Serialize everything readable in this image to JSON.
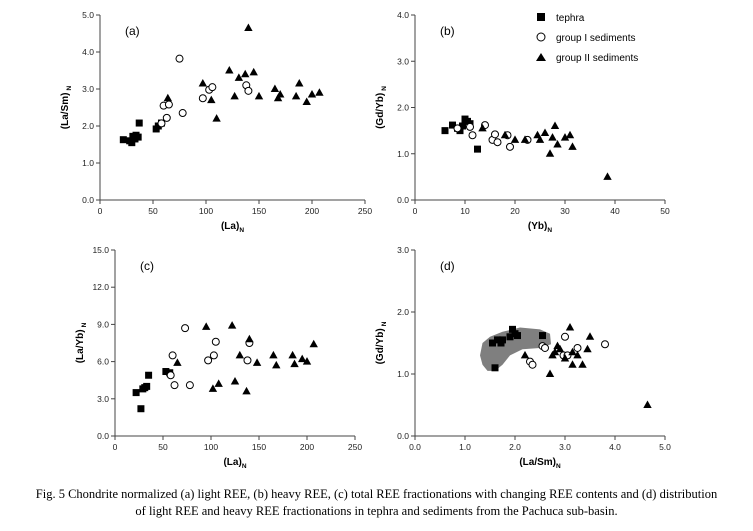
{
  "caption": {
    "line1": "Fig. 5 Chondrite normalized (a) light REE, (b) heavy REE, (c) total REE fractionations with changing REE contents and (d) distribution",
    "line2": "of light REE and heavy REE fractionations in tephra and sediments from the Pachuca sub-basin."
  },
  "legend": {
    "tephra": "tephra",
    "group1": "group I sediments",
    "group2": "group II sediments"
  },
  "chart_data": [
    {
      "id": "a",
      "panel_label": "(a)",
      "type": "scatter",
      "xlabel": "(La)N",
      "ylabel": "(La/Sm)N",
      "xlim": [
        0,
        250
      ],
      "ylim": [
        0,
        5
      ],
      "xticks": [
        "0",
        "50",
        "100",
        "150",
        "200",
        "250"
      ],
      "yticks": [
        "0.0",
        "1.0",
        "2.0",
        "3.0",
        "4.0",
        "5.0"
      ],
      "series": [
        {
          "name": "tephra",
          "marker": "square",
          "points": [
            [
              22,
              1.63
            ],
            [
              28,
              1.6
            ],
            [
              30,
              1.55
            ],
            [
              31,
              1.72
            ],
            [
              33,
              1.65
            ],
            [
              34,
              1.75
            ],
            [
              36,
              1.7
            ],
            [
              37,
              2.08
            ],
            [
              53,
              1.92
            ],
            [
              55,
              2.0
            ],
            [
              58,
              2.08
            ]
          ]
        },
        {
          "name": "group I sediments",
          "marker": "circle",
          "points": [
            [
              58,
              2.07
            ],
            [
              60,
              2.55
            ],
            [
              63,
              2.22
            ],
            [
              65,
              2.58
            ],
            [
              75,
              3.82
            ],
            [
              78,
              2.35
            ],
            [
              97,
              2.75
            ],
            [
              103,
              2.98
            ],
            [
              106,
              3.05
            ],
            [
              138,
              3.1
            ],
            [
              140,
              2.95
            ]
          ]
        },
        {
          "name": "group II sediments",
          "marker": "triangle",
          "points": [
            [
              64,
              2.75
            ],
            [
              97,
              3.15
            ],
            [
              105,
              2.7
            ],
            [
              110,
              2.2
            ],
            [
              122,
              3.5
            ],
            [
              127,
              2.8
            ],
            [
              131,
              3.3
            ],
            [
              137,
              3.4
            ],
            [
              140,
              4.65
            ],
            [
              145,
              3.45
            ],
            [
              150,
              2.8
            ],
            [
              165,
              3.0
            ],
            [
              168,
              2.75
            ],
            [
              170,
              2.85
            ],
            [
              185,
              2.8
            ],
            [
              188,
              3.15
            ],
            [
              195,
              2.65
            ],
            [
              200,
              2.85
            ],
            [
              207,
              2.9
            ]
          ]
        }
      ]
    },
    {
      "id": "b",
      "panel_label": "(b)",
      "type": "scatter",
      "xlabel": "(Yb)N",
      "ylabel": "(Gd/Yb) N",
      "xlim": [
        0,
        50
      ],
      "ylim": [
        0,
        4
      ],
      "xticks": [
        "0",
        "10",
        "20",
        "30",
        "40",
        "50"
      ],
      "yticks": [
        "0.0",
        "1.0",
        "2.0",
        "3.0",
        "4.0"
      ],
      "series": [
        {
          "name": "tephra",
          "marker": "square",
          "points": [
            [
              6,
              1.5
            ],
            [
              7.5,
              1.62
            ],
            [
              8.5,
              1.55
            ],
            [
              9,
              1.5
            ],
            [
              9.5,
              1.6
            ],
            [
              10,
              1.75
            ],
            [
              10.5,
              1.7
            ],
            [
              11,
              1.65
            ],
            [
              12.5,
              1.1
            ]
          ]
        },
        {
          "name": "group I sediments",
          "marker": "circle",
          "points": [
            [
              8.5,
              1.55
            ],
            [
              11,
              1.58
            ],
            [
              11.5,
              1.4
            ],
            [
              14,
              1.62
            ],
            [
              15.5,
              1.3
            ],
            [
              16,
              1.42
            ],
            [
              16.5,
              1.25
            ],
            [
              18.5,
              1.4
            ],
            [
              19,
              1.15
            ],
            [
              22.5,
              1.3
            ]
          ]
        },
        {
          "name": "group II sediments",
          "marker": "triangle",
          "points": [
            [
              13.5,
              1.55
            ],
            [
              18,
              1.4
            ],
            [
              20,
              1.3
            ],
            [
              22,
              1.3
            ],
            [
              24.5,
              1.4
            ],
            [
              25,
              1.3
            ],
            [
              26,
              1.45
            ],
            [
              27,
              1.0
            ],
            [
              27.5,
              1.35
            ],
            [
              28,
              1.6
            ],
            [
              28.5,
              1.2
            ],
            [
              30,
              1.35
            ],
            [
              31,
              1.4
            ],
            [
              31.5,
              1.15
            ],
            [
              38.5,
              0.5
            ]
          ]
        }
      ]
    },
    {
      "id": "c",
      "panel_label": "(c)",
      "type": "scatter",
      "xlabel": "(La)N",
      "ylabel": "(La/Yb) N",
      "xlim": [
        0,
        250
      ],
      "ylim": [
        0,
        15
      ],
      "xticks": [
        "0",
        "50",
        "100",
        "150",
        "200",
        "250"
      ],
      "yticks": [
        "0.0",
        "3.0",
        "6.0",
        "9.0",
        "12.0",
        "15.0"
      ],
      "series": [
        {
          "name": "tephra",
          "marker": "square",
          "points": [
            [
              22,
              3.5
            ],
            [
              27,
              2.2
            ],
            [
              29,
              3.8
            ],
            [
              31,
              3.9
            ],
            [
              33,
              4.0
            ],
            [
              35,
              4.9
            ],
            [
              53,
              5.2
            ],
            [
              57,
              5.1
            ]
          ]
        },
        {
          "name": "group I sediments",
          "marker": "circle",
          "points": [
            [
              58,
              4.9
            ],
            [
              60,
              6.5
            ],
            [
              62,
              4.1
            ],
            [
              73,
              8.7
            ],
            [
              78,
              4.1
            ],
            [
              97,
              6.1
            ],
            [
              103,
              6.5
            ],
            [
              105,
              7.6
            ],
            [
              138,
              6.1
            ],
            [
              140,
              7.5
            ]
          ]
        },
        {
          "name": "group II sediments",
          "marker": "triangle",
          "points": [
            [
              65,
              5.9
            ],
            [
              95,
              8.8
            ],
            [
              102,
              3.8
            ],
            [
              108,
              4.2
            ],
            [
              122,
              8.9
            ],
            [
              125,
              4.4
            ],
            [
              130,
              6.5
            ],
            [
              137,
              3.6
            ],
            [
              140,
              7.8
            ],
            [
              148,
              5.9
            ],
            [
              165,
              6.5
            ],
            [
              168,
              5.7
            ],
            [
              185,
              6.5
            ],
            [
              187,
              5.8
            ],
            [
              195,
              6.2
            ],
            [
              200,
              6.0
            ],
            [
              207,
              7.4
            ]
          ]
        }
      ]
    },
    {
      "id": "d",
      "panel_label": "(d)",
      "type": "scatter",
      "xlabel": "(La/Sm)N",
      "ylabel": "(Gd/Yb) N",
      "xlim": [
        0,
        5
      ],
      "ylim": [
        0,
        3
      ],
      "xticks": [
        "0.0",
        "1.0",
        "2.0",
        "3.0",
        "4.0",
        "5.0"
      ],
      "yticks": [
        "0.0",
        "1.0",
        "2.0",
        "3.0"
      ],
      "shaded_region": [
        [
          1.3,
          1.3
        ],
        [
          1.35,
          1.5
        ],
        [
          1.5,
          1.6
        ],
        [
          1.75,
          1.68
        ],
        [
          2.1,
          1.75
        ],
        [
          2.5,
          1.72
        ],
        [
          2.7,
          1.65
        ],
        [
          2.72,
          1.48
        ],
        [
          2.5,
          1.42
        ],
        [
          2.15,
          1.4
        ],
        [
          1.9,
          1.3
        ],
        [
          1.75,
          1.15
        ],
        [
          1.6,
          1.05
        ],
        [
          1.45,
          1.05
        ],
        [
          1.35,
          1.15
        ]
      ],
      "series": [
        {
          "name": "tephra",
          "marker": "square",
          "points": [
            [
              1.55,
              1.5
            ],
            [
              1.6,
              1.1
            ],
            [
              1.65,
              1.55
            ],
            [
              1.72,
              1.5
            ],
            [
              1.75,
              1.55
            ],
            [
              1.9,
              1.6
            ],
            [
              1.95,
              1.72
            ],
            [
              2.0,
              1.65
            ],
            [
              2.05,
              1.62
            ],
            [
              2.55,
              1.62
            ]
          ]
        },
        {
          "name": "group I sediments",
          "marker": "circle",
          "points": [
            [
              2.3,
              1.2
            ],
            [
              2.35,
              1.15
            ],
            [
              2.55,
              1.45
            ],
            [
              2.6,
              1.42
            ],
            [
              2.97,
              1.3
            ],
            [
              3.0,
              1.6
            ],
            [
              3.05,
              1.3
            ],
            [
              3.25,
              1.42
            ],
            [
              3.8,
              1.48
            ]
          ]
        },
        {
          "name": "group II sediments",
          "marker": "triangle",
          "points": [
            [
              2.2,
              1.3
            ],
            [
              2.7,
              1.0
            ],
            [
              2.75,
              1.3
            ],
            [
              2.8,
              1.35
            ],
            [
              2.85,
              1.45
            ],
            [
              2.9,
              1.4
            ],
            [
              3.0,
              1.25
            ],
            [
              3.1,
              1.75
            ],
            [
              3.15,
              1.35
            ],
            [
              3.15,
              1.15
            ],
            [
              3.25,
              1.3
            ],
            [
              3.35,
              1.15
            ],
            [
              3.45,
              1.4
            ],
            [
              3.5,
              1.6
            ],
            [
              4.65,
              0.5
            ]
          ]
        }
      ]
    }
  ]
}
